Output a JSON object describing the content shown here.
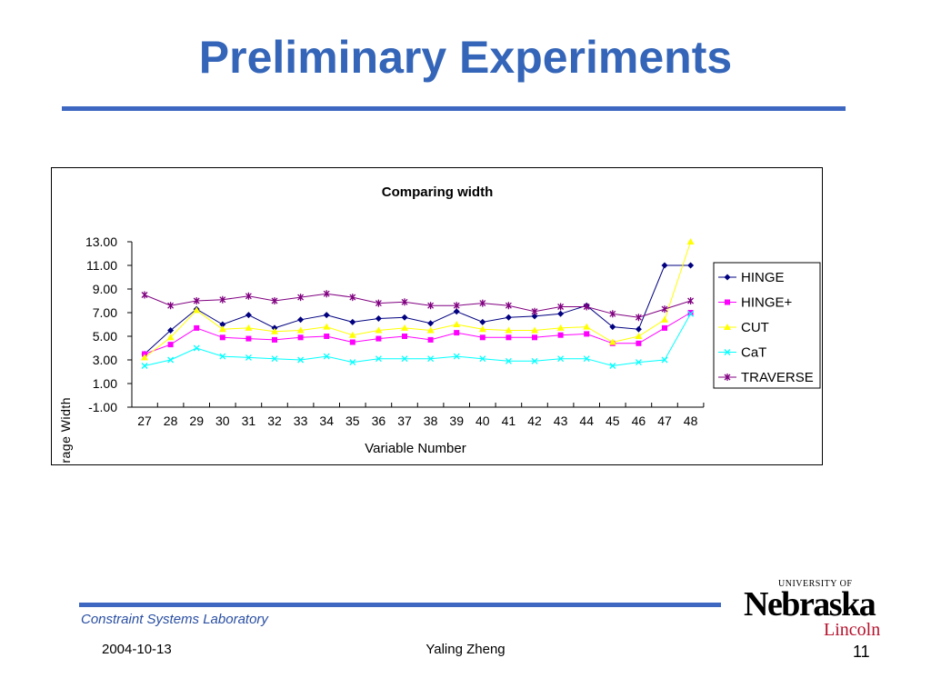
{
  "slide": {
    "title": "Preliminary Experiments",
    "footer_lab": "Constraint Systems Laboratory",
    "date": "2004-10-13",
    "author": "Yaling Zheng",
    "page_number": "11",
    "logo_university": "UNIVERSITY OF",
    "logo_name": "Nebraska",
    "logo_city": "Lincoln",
    "title_color": "#3465b8",
    "rule_color": "#3d67c0"
  },
  "chart_data": {
    "type": "line",
    "title": "Comparing width",
    "xlabel": "Variable Number",
    "ylabel": "Average Width",
    "categories": [
      "27",
      "28",
      "29",
      "30",
      "31",
      "32",
      "33",
      "34",
      "35",
      "36",
      "37",
      "38",
      "39",
      "40",
      "41",
      "42",
      "43",
      "44",
      "45",
      "46",
      "47",
      "48"
    ],
    "ylim": [
      -1,
      13
    ],
    "yticks": [
      "13.00",
      "11.00",
      "9.00",
      "7.00",
      "5.00",
      "3.00",
      "1.00",
      "-1.00"
    ],
    "legend_position": "right",
    "grid": false,
    "series": [
      {
        "name": "HINGE",
        "color": "#000080",
        "marker": "diamond",
        "values": [
          3.5,
          5.5,
          7.3,
          6.0,
          6.8,
          5.7,
          6.4,
          6.8,
          6.2,
          6.5,
          6.6,
          6.1,
          7.1,
          6.2,
          6.6,
          6.7,
          6.9,
          7.6,
          5.8,
          5.6,
          11.0,
          11.0
        ]
      },
      {
        "name": "HINGE+",
        "color": "#ff00ff",
        "marker": "square",
        "values": [
          3.5,
          4.3,
          5.7,
          4.9,
          4.8,
          4.7,
          4.9,
          5.0,
          4.5,
          4.8,
          5.0,
          4.7,
          5.3,
          4.9,
          4.9,
          4.9,
          5.1,
          5.2,
          4.4,
          4.4,
          5.7,
          7.0
        ]
      },
      {
        "name": "CUT",
        "color": "#ffff00",
        "marker": "triangle",
        "values": [
          3.2,
          4.9,
          7.2,
          5.6,
          5.7,
          5.4,
          5.5,
          5.8,
          5.1,
          5.5,
          5.7,
          5.5,
          6.0,
          5.6,
          5.5,
          5.5,
          5.7,
          5.8,
          4.5,
          5.0,
          6.4,
          13.0
        ]
      },
      {
        "name": "CaT",
        "color": "#00ffff",
        "marker": "x",
        "values": [
          2.5,
          3.0,
          4.0,
          3.3,
          3.2,
          3.1,
          3.0,
          3.3,
          2.8,
          3.1,
          3.1,
          3.1,
          3.3,
          3.1,
          2.9,
          2.9,
          3.1,
          3.1,
          2.5,
          2.8,
          3.0,
          6.9
        ]
      },
      {
        "name": "TRAVERSE",
        "color": "#800080",
        "marker": "star",
        "values": [
          8.5,
          7.6,
          8.0,
          8.1,
          8.4,
          8.0,
          8.3,
          8.6,
          8.3,
          7.8,
          7.9,
          7.6,
          7.6,
          7.8,
          7.6,
          7.1,
          7.5,
          7.5,
          6.9,
          6.6,
          7.3,
          8.0
        ]
      }
    ]
  }
}
